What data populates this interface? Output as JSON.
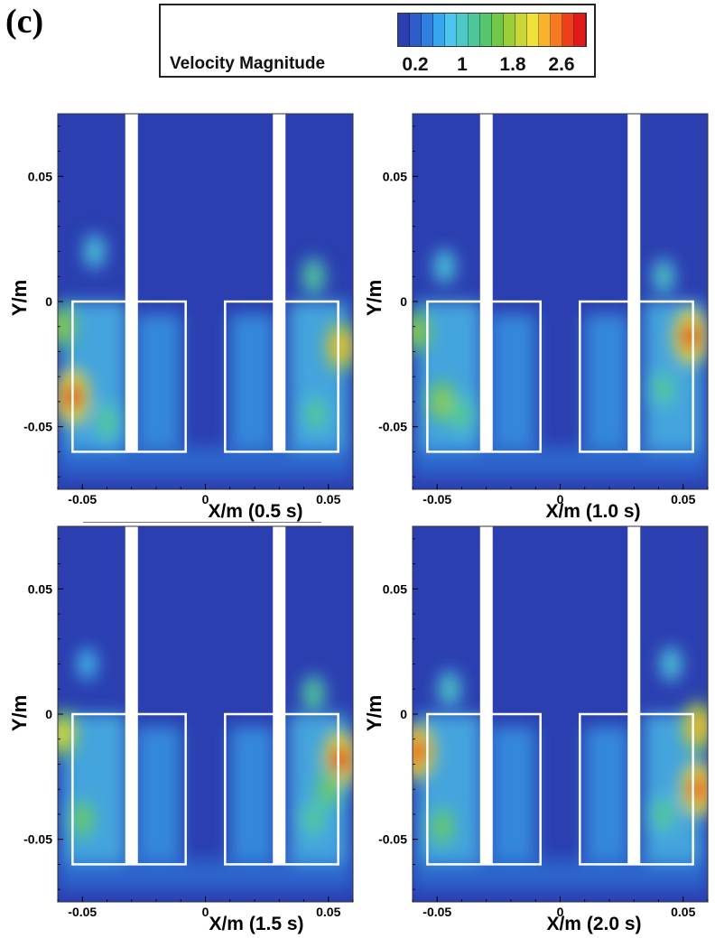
{
  "panel_label": "(c)",
  "legend": {
    "title": "Velocity Magnitude",
    "ticks": [
      "0.2",
      "1",
      "1.8",
      "2.6"
    ],
    "colors": [
      "#2b3fb0",
      "#2f5cc8",
      "#2f7fe0",
      "#38a6ee",
      "#4cc6ec",
      "#4cc9c4",
      "#4cc79a",
      "#55c66b",
      "#72c648",
      "#9ccd3a",
      "#c9d636",
      "#eee23a",
      "#f9b22e",
      "#f67a22",
      "#ee3f1c",
      "#e01a1a"
    ]
  },
  "chart_data": [
    {
      "type": "heatmap",
      "time_label": "(0.5 s)",
      "xlabel": "X/m",
      "ylabel": "Y/m",
      "x_ticks": [
        "-0.05",
        "0",
        "0.05"
      ],
      "y_ticks": [
        "0.05",
        "0",
        "-0.05"
      ],
      "xlim": [
        -0.06,
        0.06
      ],
      "ylim": [
        -0.075,
        0.075
      ],
      "hotspots": [
        {
          "x": -0.054,
          "y": -0.038,
          "v": 2.8
        },
        {
          "x": -0.058,
          "y": -0.01,
          "v": 1.8
        },
        {
          "x": -0.045,
          "y": 0.02,
          "v": 1.0
        },
        {
          "x": 0.055,
          "y": -0.018,
          "v": 2.2
        },
        {
          "x": 0.044,
          "y": 0.01,
          "v": 1.3
        },
        {
          "x": -0.04,
          "y": -0.048,
          "v": 1.4
        },
        {
          "x": 0.045,
          "y": -0.045,
          "v": 1.3
        }
      ]
    },
    {
      "type": "heatmap",
      "time_label": "(1.0 s)",
      "xlabel": "X/m",
      "ylabel": "Y/m",
      "x_ticks": [
        "-0.05",
        "0",
        "0.05"
      ],
      "y_ticks": [
        "0.05",
        "0",
        "-0.05"
      ],
      "xlim": [
        -0.06,
        0.06
      ],
      "ylim": [
        -0.075,
        0.075
      ],
      "hotspots": [
        {
          "x": 0.053,
          "y": -0.014,
          "v": 2.8
        },
        {
          "x": -0.048,
          "y": -0.04,
          "v": 1.8
        },
        {
          "x": -0.058,
          "y": -0.012,
          "v": 1.7
        },
        {
          "x": -0.047,
          "y": 0.014,
          "v": 1.0
        },
        {
          "x": 0.042,
          "y": 0.01,
          "v": 1.1
        },
        {
          "x": 0.042,
          "y": -0.035,
          "v": 1.3
        },
        {
          "x": -0.04,
          "y": -0.045,
          "v": 1.4
        }
      ]
    },
    {
      "type": "heatmap",
      "time_label": "(1.5 s)",
      "xlabel": "X/m",
      "ylabel": "Y/m",
      "x_ticks": [
        "-0.05",
        "0",
        "0.05"
      ],
      "y_ticks": [
        "0.05",
        "0",
        "-0.05"
      ],
      "xlim": [
        -0.06,
        0.06
      ],
      "ylim": [
        -0.075,
        0.075
      ],
      "hotspots": [
        {
          "x": 0.055,
          "y": -0.018,
          "v": 2.8
        },
        {
          "x": -0.058,
          "y": -0.008,
          "v": 2.0
        },
        {
          "x": -0.05,
          "y": -0.042,
          "v": 1.6
        },
        {
          "x": 0.044,
          "y": 0.008,
          "v": 1.3
        },
        {
          "x": -0.048,
          "y": 0.02,
          "v": 0.9
        },
        {
          "x": 0.044,
          "y": -0.042,
          "v": 1.3
        },
        {
          "x": 0.05,
          "y": -0.03,
          "v": 1.6
        }
      ]
    },
    {
      "type": "heatmap",
      "time_label": "(2.0 s)",
      "xlabel": "X/m",
      "ylabel": "Y/m",
      "x_ticks": [
        "-0.05",
        "0",
        "0.05"
      ],
      "y_ticks": [
        "0.05",
        "0",
        "-0.05"
      ],
      "xlim": [
        -0.06,
        0.06
      ],
      "ylim": [
        -0.075,
        0.075
      ],
      "hotspots": [
        {
          "x": -0.058,
          "y": -0.015,
          "v": 2.7
        },
        {
          "x": 0.056,
          "y": -0.03,
          "v": 2.7
        },
        {
          "x": 0.056,
          "y": -0.005,
          "v": 2.3
        },
        {
          "x": -0.048,
          "y": -0.045,
          "v": 1.6
        },
        {
          "x": 0.045,
          "y": 0.02,
          "v": 1.0
        },
        {
          "x": -0.045,
          "y": 0.01,
          "v": 1.2
        },
        {
          "x": 0.042,
          "y": -0.04,
          "v": 1.4
        }
      ]
    }
  ]
}
